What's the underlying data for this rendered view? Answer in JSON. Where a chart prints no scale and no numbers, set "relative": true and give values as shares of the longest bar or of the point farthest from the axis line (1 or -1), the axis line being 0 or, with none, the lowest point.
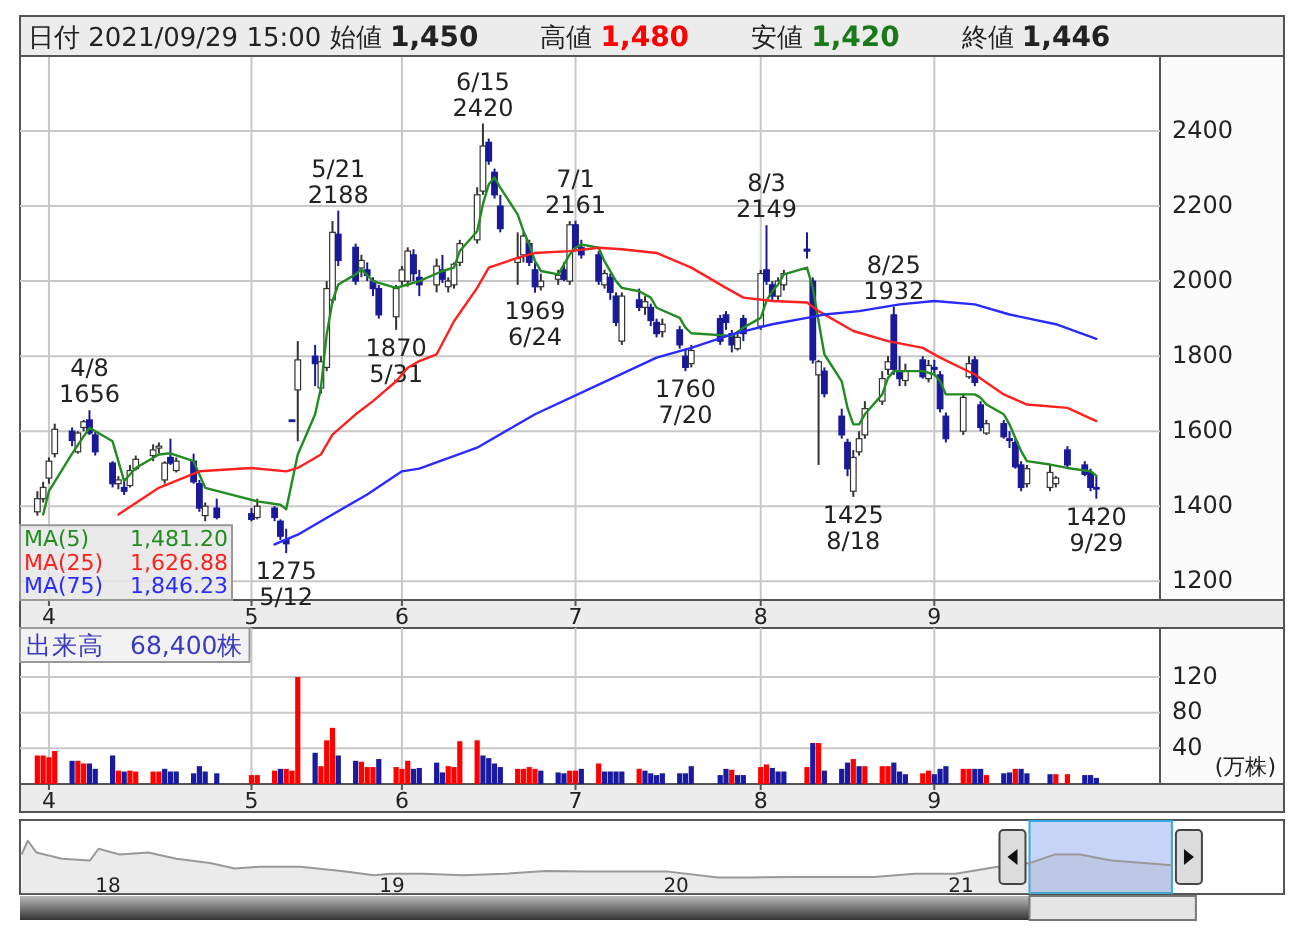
{
  "chart_data": [
    {
      "type": "candlestick",
      "title": "日付 2021/09/29 15:00 始値 1,450 高値 1,480 安値 1,420 終値 1,446",
      "colors": [
        "#ffffff",
        "#ffffff",
        "#ffffff",
        "#ffffff",
        "#1a1a99",
        "#ffffff",
        "#ffffff",
        "#1a1a99",
        "#1a1a99",
        "#1a1a99",
        "#ffffff",
        "#1a1a99",
        "#ffffff",
        "#ffffff",
        "#ffffff",
        "#ffffff",
        "#ffffff",
        "#1a1a99",
        "#ffffff",
        "#1a1a99",
        "#1a1a99",
        "#ffffff",
        "#1a1a99",
        "#1a1a99",
        "#ffffff",
        "#1a1a99",
        "#1a1a99",
        "#1a1a99",
        "#1a1a99",
        "#ffffff",
        "#1a1a99",
        "#ffffff",
        "#ffffff",
        "#ffffff",
        "#1a1a99",
        "#1a1a99",
        "#ffffff",
        "#1a1a99",
        "#1a1a99",
        "#1a1a99",
        "#ffffff",
        "#ffffff",
        "#ffffff",
        "#1a1a99",
        "#1a1a99",
        "#ffffff",
        "#1a1a99",
        "#ffffff",
        "#ffffff",
        "#ffffff",
        "#ffffff",
        "#ffffff",
        "#1a1a99",
        "#1a1a99",
        "#1a1a99",
        "#ffffff",
        "#ffffff",
        "#1a1a99",
        "#1a1a99",
        "#ffffff",
        "#ffffff",
        "#1a1a99",
        "#ffffff",
        "#1a1a99",
        "#1a1a99",
        "#1a1a99",
        "#ffffff",
        "#1a1a99",
        "#1a1a99",
        "#ffffff",
        "#1a1a99",
        "#ffffff",
        "#1a1a99",
        "#1a1a99",
        "#ffffff",
        "#1a1a99",
        "#1a1a99",
        "#ffffff",
        "#1a1a99",
        "#1a1a99",
        "#1a1a99",
        "#ffffff",
        "#1a1a99",
        "#ffffff",
        "#1a1a99",
        "#1a1a99",
        "#ffffff",
        "#ffffff",
        "#1a1a99",
        "#1a1a99",
        "#ffffff",
        "#1a1a99",
        "#1a1a99",
        "#1a1a99",
        "#ffffff",
        "#ffffff",
        "#ffffff",
        "#ffffff",
        "#ffffff",
        "#1a1a99",
        "#1a1a99",
        "#ffffff",
        "#1a1a99",
        "#ffffff",
        "#1a1a99",
        "#1a1a99",
        "#1a1a99",
        "#ffffff",
        "#ffffff",
        "#1a1a99",
        "#1a1a99",
        "#ffffff",
        "#1a1a99",
        "#1a1a99",
        "#1a1a99",
        "#1a1a99",
        "#ffffff",
        "#ffffff",
        "#ffffff",
        "#1a1a99",
        "#1a1a99",
        "#1a1a99",
        "#1a1a99"
      ],
      "x": [
        "2021-03-30",
        "2021-03-31",
        "2021-04-01",
        "2021-04-02",
        "2021-04-05",
        "2021-04-06",
        "2021-04-07",
        "2021-04-08",
        "2021-04-09",
        "2021-04-12",
        "2021-04-13",
        "2021-04-14",
        "2021-04-15",
        "2021-04-16",
        "2021-04-19",
        "2021-04-20",
        "2021-04-21",
        "2021-04-22",
        "2021-04-23",
        "2021-04-26",
        "2021-04-27",
        "2021-04-28",
        "2021-04-30",
        "2021-05-06",
        "2021-05-07",
        "2021-05-10",
        "2021-05-11",
        "2021-05-12",
        "2021-05-13",
        "2021-05-14",
        "2021-05-17",
        "2021-05-18",
        "2021-05-19",
        "2021-05-20",
        "2021-05-21",
        "2021-05-24",
        "2021-05-25",
        "2021-05-26",
        "2021-05-27",
        "2021-05-28",
        "2021-05-31",
        "2021-06-01",
        "2021-06-02",
        "2021-06-03",
        "2021-06-04",
        "2021-06-07",
        "2021-06-08",
        "2021-06-09",
        "2021-06-10",
        "2021-06-11",
        "2021-06-14",
        "2021-06-15",
        "2021-06-16",
        "2021-06-17",
        "2021-06-18",
        "2021-06-21",
        "2021-06-22",
        "2021-06-23",
        "2021-06-24",
        "2021-06-25",
        "2021-06-28",
        "2021-06-29",
        "2021-06-30",
        "2021-07-01",
        "2021-07-02",
        "2021-07-05",
        "2021-07-06",
        "2021-07-07",
        "2021-07-08",
        "2021-07-09",
        "2021-07-12",
        "2021-07-13",
        "2021-07-14",
        "2021-07-15",
        "2021-07-16",
        "2021-07-19",
        "2021-07-20",
        "2021-07-21",
        "2021-07-26",
        "2021-07-27",
        "2021-07-28",
        "2021-07-29",
        "2021-07-30",
        "2021-08-02",
        "2021-08-03",
        "2021-08-04",
        "2021-08-05",
        "2021-08-06",
        "2021-08-10",
        "2021-08-11",
        "2021-08-12",
        "2021-08-13",
        "2021-08-16",
        "2021-08-17",
        "2021-08-18",
        "2021-08-19",
        "2021-08-20",
        "2021-08-23",
        "2021-08-24",
        "2021-08-25",
        "2021-08-26",
        "2021-08-27",
        "2021-08-30",
        "2021-08-31",
        "2021-09-01",
        "2021-09-02",
        "2021-09-03",
        "2021-09-06",
        "2021-09-07",
        "2021-09-08",
        "2021-09-09",
        "2021-09-10",
        "2021-09-13",
        "2021-09-14",
        "2021-09-15",
        "2021-09-16",
        "2021-09-17",
        "2021-09-21",
        "2021-09-22",
        "2021-09-24",
        "2021-09-27",
        "2021-09-28",
        "2021-09-29"
      ],
      "ohlc": [
        [
          1385,
          1440,
          1375,
          1420
        ],
        [
          1420,
          1465,
          1410,
          1450
        ],
        [
          1475,
          1530,
          1460,
          1520
        ],
        [
          1540,
          1620,
          1530,
          1605
        ],
        [
          1600,
          1610,
          1560,
          1575
        ],
        [
          1545,
          1600,
          1540,
          1595
        ],
        [
          1610,
          1630,
          1600,
          1625
        ],
        [
          1630,
          1656,
          1590,
          1595
        ],
        [
          1590,
          1600,
          1535,
          1545
        ],
        [
          1515,
          1520,
          1450,
          1460
        ],
        [
          1460,
          1480,
          1445,
          1470
        ],
        [
          1450,
          1465,
          1430,
          1440
        ],
        [
          1455,
          1510,
          1450,
          1495
        ],
        [
          1500,
          1535,
          1495,
          1525
        ],
        [
          1535,
          1565,
          1520,
          1550
        ],
        [
          1555,
          1570,
          1540,
          1560
        ],
        [
          1470,
          1520,
          1460,
          1515
        ],
        [
          1530,
          1580,
          1510,
          1515
        ],
        [
          1495,
          1530,
          1490,
          1520
        ],
        [
          1520,
          1540,
          1460,
          1465
        ],
        [
          1460,
          1470,
          1385,
          1395
        ],
        [
          1375,
          1410,
          1360,
          1400
        ],
        [
          1395,
          1420,
          1365,
          1370
        ],
        [
          1380,
          1395,
          1360,
          1365
        ],
        [
          1370,
          1420,
          1365,
          1400
        ],
        [
          1395,
          1400,
          1360,
          1370
        ],
        [
          1360,
          1365,
          1310,
          1320
        ],
        [
          1310,
          1340,
          1275,
          1300
        ],
        [
          1630,
          1630,
          1630,
          1630
        ],
        [
          1710,
          1840,
          1573,
          1790
        ],
        [
          1800,
          1830,
          1720,
          1780
        ],
        [
          1715,
          1800,
          1700,
          1785
        ],
        [
          1770,
          2000,
          1760,
          1980
        ],
        [
          1950,
          2160,
          1940,
          2130
        ],
        [
          2125,
          2188,
          2040,
          2055
        ],
        [
          2090,
          2100,
          1990,
          2000
        ],
        [
          2035,
          2070,
          2010,
          2055
        ],
        [
          2030,
          2050,
          2000,
          2015
        ],
        [
          2000,
          2010,
          1960,
          1980
        ],
        [
          1980,
          1990,
          1900,
          1910
        ],
        [
          1905,
          1990,
          1870,
          1980
        ],
        [
          2000,
          2040,
          1990,
          2030
        ],
        [
          2000,
          2090,
          1985,
          2080
        ],
        [
          2070,
          2085,
          2000,
          2020
        ],
        [
          2010,
          2030,
          1960,
          1990
        ],
        [
          1990,
          2060,
          1970,
          2040
        ],
        [
          2030,
          2070,
          1995,
          2005
        ],
        [
          1985,
          2010,
          1970,
          2000
        ],
        [
          1990,
          2050,
          1980,
          2045
        ],
        [
          2050,
          2110,
          2040,
          2100
        ],
        [
          2110,
          2250,
          2100,
          2230
        ],
        [
          2240,
          2420,
          2230,
          2360
        ],
        [
          2370,
          2380,
          2310,
          2320
        ],
        [
          2290,
          2300,
          2220,
          2230
        ],
        [
          2200,
          2230,
          2130,
          2140
        ],
        [
          2050,
          2130,
          1990,
          2060
        ],
        [
          2070,
          2130,
          2050,
          2120
        ],
        [
          2100,
          2110,
          2040,
          2050
        ],
        [
          2030,
          2050,
          1969,
          1985
        ],
        [
          1985,
          2020,
          1975,
          2000
        ],
        [
          2005,
          2030,
          1990,
          2015
        ],
        [
          2030,
          2050,
          2000,
          2005
        ],
        [
          2000,
          2160,
          1990,
          2150
        ],
        [
          2150,
          2161,
          2080,
          2090
        ],
        [
          2090,
          2110,
          2060,
          2070
        ],
        [
          2070,
          2080,
          1990,
          2000
        ],
        [
          1990,
          2030,
          1980,
          2020
        ],
        [
          2010,
          2020,
          1950,
          1970
        ],
        [
          1960,
          1970,
          1880,
          1890
        ],
        [
          1840,
          1970,
          1830,
          1960
        ],
        [
          1950,
          1980,
          1920,
          1930
        ],
        [
          1930,
          1960,
          1910,
          1945
        ],
        [
          1930,
          1940,
          1880,
          1895
        ],
        [
          1890,
          1900,
          1850,
          1860
        ],
        [
          1865,
          1900,
          1850,
          1885
        ],
        [
          1870,
          1880,
          1820,
          1830
        ],
        [
          1800,
          1820,
          1760,
          1770
        ],
        [
          1780,
          1830,
          1770,
          1815
        ],
        [
          1900,
          1910,
          1830,
          1840
        ],
        [
          1910,
          1920,
          1870,
          1890
        ],
        [
          1860,
          1870,
          1810,
          1830
        ],
        [
          1820,
          1860,
          1815,
          1850
        ],
        [
          1900,
          1910,
          1840,
          1860
        ],
        [
          1880,
          2030,
          1870,
          2020
        ],
        [
          2030,
          2149,
          1990,
          2000
        ],
        [
          1990,
          2000,
          1950,
          1960
        ],
        [
          1960,
          2010,
          1950,
          2000
        ],
        [
          1990,
          2030,
          1975,
          2020
        ],
        [
          2085,
          2130,
          2060,
          2080
        ],
        [
          2000,
          2010,
          1780,
          1790
        ],
        [
          1750,
          1790,
          1510,
          1785
        ],
        [
          1760,
          1770,
          1690,
          1700
        ],
        [
          1640,
          1660,
          1580,
          1590
        ],
        [
          1570,
          1580,
          1480,
          1500
        ],
        [
          1440,
          1550,
          1425,
          1530
        ],
        [
          1545,
          1600,
          1535,
          1580
        ],
        [
          1590,
          1680,
          1580,
          1660
        ],
        [
          1680,
          1760,
          1670,
          1740
        ],
        [
          1765,
          1800,
          1750,
          1785
        ],
        [
          1910,
          1932,
          1750,
          1765
        ],
        [
          1760,
          1800,
          1720,
          1740
        ],
        [
          1735,
          1780,
          1720,
          1760
        ],
        [
          1790,
          1800,
          1740,
          1745
        ],
        [
          1740,
          1790,
          1730,
          1775
        ],
        [
          1770,
          1790,
          1750,
          1765
        ],
        [
          1750,
          1760,
          1650,
          1660
        ],
        [
          1640,
          1650,
          1570,
          1580
        ],
        [
          1600,
          1700,
          1590,
          1690
        ],
        [
          1745,
          1800,
          1740,
          1780
        ],
        [
          1790,
          1800,
          1720,
          1730
        ],
        [
          1670,
          1680,
          1600,
          1610
        ],
        [
          1595,
          1630,
          1590,
          1620
        ],
        [
          1620,
          1630,
          1580,
          1585
        ],
        [
          1580,
          1600,
          1555,
          1575
        ],
        [
          1570,
          1580,
          1500,
          1505
        ],
        [
          1510,
          1520,
          1440,
          1450
        ],
        [
          1460,
          1510,
          1450,
          1500
        ],
        [
          1450,
          1510,
          1440,
          1490
        ],
        [
          1460,
          1480,
          1450,
          1475
        ],
        [
          1550,
          1560,
          1500,
          1510
        ],
        [
          1510,
          1520,
          1480,
          1485
        ],
        [
          1490,
          1500,
          1440,
          1450
        ],
        [
          1450,
          1480,
          1420,
          1446
        ]
      ],
      "series": [
        {
          "name": "MA(5)",
          "type": "line",
          "color": "#228b22",
          "x": [
            "2021-03-31",
            "2021-04-01",
            "2021-04-05",
            "2021-04-08",
            "2021-04-12",
            "2021-04-14",
            "2021-04-16",
            "2021-04-20",
            "2021-04-22",
            "2021-04-26",
            "2021-04-28",
            "2021-05-07",
            "2021-05-11",
            "2021-05-12",
            "2021-05-14",
            "2021-05-17",
            "2021-05-18",
            "2021-05-19",
            "2021-05-20",
            "2021-05-21",
            "2021-05-24",
            "2021-05-25",
            "2021-05-27",
            "2021-05-31",
            "2021-06-02",
            "2021-06-04",
            "2021-06-08",
            "2021-06-10",
            "2021-06-11",
            "2021-06-14",
            "2021-06-15",
            "2021-06-16",
            "2021-06-17",
            "2021-06-18",
            "2021-06-21",
            "2021-06-22",
            "2021-06-23",
            "2021-06-24",
            "2021-06-25",
            "2021-06-28",
            "2021-06-30",
            "2021-07-01",
            "2021-07-02",
            "2021-07-05",
            "2021-07-06",
            "2021-07-08",
            "2021-07-09",
            "2021-07-12",
            "2021-07-14",
            "2021-07-15",
            "2021-07-19",
            "2021-07-20",
            "2021-07-21",
            "2021-07-28",
            "2021-07-30",
            "2021-08-02",
            "2021-08-03",
            "2021-08-04",
            "2021-08-05",
            "2021-08-06",
            "2021-08-10",
            "2021-08-11",
            "2021-08-12",
            "2021-08-13",
            "2021-08-16",
            "2021-08-17",
            "2021-08-18",
            "2021-08-19",
            "2021-08-20",
            "2021-08-23",
            "2021-08-24",
            "2021-08-25",
            "2021-08-30",
            "2021-09-01",
            "2021-09-02",
            "2021-09-03",
            "2021-09-08",
            "2021-09-09",
            "2021-09-10",
            "2021-09-13",
            "2021-09-14",
            "2021-09-15",
            "2021-09-16",
            "2021-09-17",
            "2021-09-21",
            "2021-09-24",
            "2021-09-28",
            "2021-09-29"
          ],
          "values": [
            1378,
            1440,
            1540,
            1609,
            1573,
            1467,
            1502,
            1538,
            1541,
            1520,
            1449,
            1413,
            1404,
            1392,
            1538,
            1645,
            1716,
            1858,
            1947,
            1991,
            2018,
            2032,
            2000,
            1982,
            1991,
            2000,
            2027,
            2036,
            2080,
            2133,
            2205,
            2258,
            2276,
            2249,
            2178,
            2133,
            2098,
            2053,
            2027,
            2018,
            2071,
            2089,
            2098,
            2089,
            2053,
            2000,
            1982,
            1973,
            1956,
            1929,
            1902,
            1876,
            1861,
            1854,
            1876,
            1902,
            1947,
            1973,
            1991,
            2018,
            2036,
            1982,
            1893,
            1805,
            1733,
            1662,
            1618,
            1618,
            1645,
            1698,
            1742,
            1760,
            1760,
            1751,
            1733,
            1698,
            1698,
            1689,
            1671,
            1645,
            1618,
            1582,
            1547,
            1520,
            1511,
            1502,
            1493,
            1481.2
          ]
        },
        {
          "name": "MA(25)",
          "type": "line",
          "color": "#ff2020",
          "x": [
            "2021-04-13",
            "2021-04-20",
            "2021-04-27",
            "2021-05-06",
            "2021-05-12",
            "2021-05-14",
            "2021-05-18",
            "2021-05-20",
            "2021-05-24",
            "2021-05-27",
            "2021-05-31",
            "2021-06-02",
            "2021-06-04",
            "2021-06-07",
            "2021-06-10",
            "2021-06-14",
            "2021-06-16",
            "2021-06-21",
            "2021-06-24",
            "2021-06-30",
            "2021-07-05",
            "2021-07-09",
            "2021-07-15",
            "2021-07-21",
            "2021-07-27",
            "2021-07-30",
            "2021-08-04",
            "2021-08-10",
            "2021-08-12",
            "2021-08-18",
            "2021-08-24",
            "2021-08-30",
            "2021-09-02",
            "2021-09-08",
            "2021-09-13",
            "2021-09-17",
            "2021-09-24",
            "2021-09-29"
          ],
          "values": [
            1378,
            1449,
            1493,
            1502,
            1493,
            1502,
            1538,
            1591,
            1645,
            1680,
            1733,
            1769,
            1787,
            1805,
            1893,
            1982,
            2036,
            2062,
            2075,
            2080,
            2089,
            2085,
            2075,
            2036,
            1982,
            1956,
            1947,
            1943,
            1920,
            1867,
            1840,
            1822,
            1796,
            1751,
            1698,
            1671,
            1662,
            1626.88
          ]
        },
        {
          "name": "MA(75)",
          "type": "line",
          "color": "#2a2aff",
          "x": [
            "2021-05-10",
            "2021-05-14",
            "2021-05-20",
            "2021-05-26",
            "2021-06-01",
            "2021-06-04",
            "2021-06-14",
            "2021-06-24",
            "2021-07-05",
            "2021-07-15",
            "2021-07-21",
            "2021-07-28",
            "2021-08-04",
            "2021-08-10",
            "2021-08-13",
            "2021-08-19",
            "2021-08-26",
            "2021-09-01",
            "2021-09-08",
            "2021-09-14",
            "2021-09-22",
            "2021-09-29"
          ],
          "values": [
            1298,
            1324,
            1378,
            1431,
            1493,
            1500,
            1556,
            1645,
            1724,
            1796,
            1822,
            1858,
            1885,
            1902,
            1911,
            1920,
            1938,
            1947,
            1938,
            1911,
            1885,
            1846.23
          ]
        }
      ],
      "annotations": [
        "1,481.20",
        "1,626.88",
        "1,846.23",
        {
          "text": "4/8\n1656",
          "x": "2021-04-08",
          "y": 1656
        },
        {
          "text": "1275\n5/12",
          "x": "2021-05-12",
          "y": 1275
        },
        {
          "text": "5/21\n2188",
          "x": "2021-05-21",
          "y": 2188
        },
        {
          "text": "1870\n5/31",
          "x": "2021-05-31",
          "y": 1870
        },
        {
          "text": "6/15\n2420",
          "x": "2021-06-15",
          "y": 2420
        },
        {
          "text": "1969\n6/24",
          "x": "2021-06-24",
          "y": 1969
        },
        {
          "text": "7/1\n2161",
          "x": "2021-07-01",
          "y": 2161
        },
        {
          "text": "1760\n7/20",
          "x": "2021-07-20",
          "y": 1760
        },
        {
          "text": "8/3\n2149",
          "x": "2021-08-03",
          "y": 2149
        },
        {
          "text": "1425\n8/18",
          "x": "2021-08-18",
          "y": 1425
        },
        {
          "text": "8/25\n1932",
          "x": "2021-08-25",
          "y": 1932
        },
        {
          "text": "1420\n9/29",
          "x": "2021-09-29",
          "y": 1420
        }
      ],
      "legend": "bottom left",
      "grid": true,
      "xlim": [
        "2021-03-27",
        "2021-10-10"
      ],
      "ylim": [
        1150,
        2600
      ],
      "yticks": [
        1200,
        1400,
        1600,
        1800,
        2000,
        2200,
        2400
      ],
      "xticks": [
        {
          "value": "2021-04-01",
          "label": "4"
        },
        {
          "value": "2021-05-06",
          "label": "5"
        },
        {
          "value": "2021-06-01",
          "label": "6"
        },
        {
          "value": "2021-07-01",
          "label": "7"
        },
        {
          "value": "2021-08-02",
          "label": "8"
        },
        {
          "value": "2021-09-01",
          "label": "9"
        }
      ]
    },
    {
      "type": "bar",
      "title": "出来高　68,400株",
      "ylabel": "(万株)",
      "x": [
        "2021-03-30",
        "2021-03-31",
        "2021-04-01",
        "2021-04-02",
        "2021-04-05",
        "2021-04-06",
        "2021-04-07",
        "2021-04-08",
        "2021-04-09",
        "2021-04-12",
        "2021-04-13",
        "2021-04-14",
        "2021-04-15",
        "2021-04-16",
        "2021-04-19",
        "2021-04-20",
        "2021-04-21",
        "2021-04-22",
        "2021-04-23",
        "2021-04-26",
        "2021-04-27",
        "2021-04-28",
        "2021-04-30",
        "2021-05-06",
        "2021-05-07",
        "2021-05-10",
        "2021-05-11",
        "2021-05-12",
        "2021-05-13",
        "2021-05-14",
        "2021-05-17",
        "2021-05-18",
        "2021-05-19",
        "2021-05-20",
        "2021-05-21",
        "2021-05-24",
        "2021-05-25",
        "2021-05-26",
        "2021-05-27",
        "2021-05-28",
        "2021-05-31",
        "2021-06-01",
        "2021-06-02",
        "2021-06-03",
        "2021-06-04",
        "2021-06-07",
        "2021-06-08",
        "2021-06-09",
        "2021-06-10",
        "2021-06-11",
        "2021-06-14",
        "2021-06-15",
        "2021-06-16",
        "2021-06-17",
        "2021-06-18",
        "2021-06-21",
        "2021-06-22",
        "2021-06-23",
        "2021-06-24",
        "2021-06-25",
        "2021-06-28",
        "2021-06-29",
        "2021-06-30",
        "2021-07-01",
        "2021-07-02",
        "2021-07-05",
        "2021-07-06",
        "2021-07-07",
        "2021-07-08",
        "2021-07-09",
        "2021-07-12",
        "2021-07-13",
        "2021-07-14",
        "2021-07-15",
        "2021-07-16",
        "2021-07-19",
        "2021-07-20",
        "2021-07-21",
        "2021-07-26",
        "2021-07-27",
        "2021-07-28",
        "2021-07-29",
        "2021-07-30",
        "2021-08-02",
        "2021-08-03",
        "2021-08-04",
        "2021-08-05",
        "2021-08-06",
        "2021-08-10",
        "2021-08-11",
        "2021-08-12",
        "2021-08-13",
        "2021-08-16",
        "2021-08-17",
        "2021-08-18",
        "2021-08-19",
        "2021-08-20",
        "2021-08-23",
        "2021-08-24",
        "2021-08-25",
        "2021-08-26",
        "2021-08-27",
        "2021-08-30",
        "2021-08-31",
        "2021-09-01",
        "2021-09-02",
        "2021-09-03",
        "2021-09-06",
        "2021-09-07",
        "2021-09-08",
        "2021-09-09",
        "2021-09-10",
        "2021-09-13",
        "2021-09-14",
        "2021-09-15",
        "2021-09-16",
        "2021-09-17",
        "2021-09-21",
        "2021-09-22",
        "2021-09-24",
        "2021-09-27",
        "2021-09-28",
        "2021-09-29"
      ],
      "values": [
        32,
        32,
        30,
        37,
        26,
        26,
        23,
        23,
        17,
        32,
        15,
        14,
        15,
        14,
        14,
        14,
        17,
        14,
        14,
        12,
        20,
        14,
        12,
        10,
        10,
        15,
        17,
        17,
        15,
        120,
        35,
        20,
        49,
        63,
        32,
        26,
        25,
        19,
        19,
        28,
        19,
        17,
        26,
        17,
        18,
        24,
        13,
        20,
        19,
        48,
        49,
        32,
        29,
        23,
        19,
        17,
        17,
        19,
        17,
        15,
        13,
        12,
        15,
        15,
        17,
        23,
        14,
        14,
        14,
        14,
        17,
        15,
        12,
        10,
        12,
        12,
        12,
        20,
        10,
        17,
        16,
        10,
        10,
        19,
        22,
        18,
        14,
        14,
        19,
        46,
        46,
        15,
        17,
        24,
        28,
        20,
        20,
        20,
        20,
        24,
        14,
        11,
        12,
        15,
        11,
        17,
        20,
        17,
        17,
        17,
        17,
        10,
        12,
        13,
        17,
        17,
        12,
        11,
        11,
        11,
        10,
        10,
        6.84
      ],
      "colors": [
        "#ff0000",
        "#ff0000",
        "#ff0000",
        "#ff0000",
        "#1a1aa0",
        "#ff0000",
        "#ff0000",
        "#1a1aa0",
        "#1a1aa0",
        "#1a1aa0",
        "#ff0000",
        "#1a1aa0",
        "#ff0000",
        "#ff0000",
        "#ff0000",
        "#ff0000",
        "#1a1aa0",
        "#1a1aa0",
        "#1a1aa0",
        "#1a1aa0",
        "#1a1aa0",
        "#1a1aa0",
        "#1a1aa0",
        "#ff0000",
        "#ff0000",
        "#ff0000",
        "#1a1aa0",
        "#ff0000",
        "#ff0000",
        "#ff0000",
        "#1a1aa0",
        "#ff0000",
        "#ff0000",
        "#ff0000",
        "#1a1aa0",
        "#1a1aa0",
        "#ff0000",
        "#ff0000",
        "#ff0000",
        "#1a1aa0",
        "#ff0000",
        "#ff0000",
        "#ff0000",
        "#1a1aa0",
        "#1a1aa0",
        "#1a1aa0",
        "#1a1aa0",
        "#ff0000",
        "#ff0000",
        "#ff0000",
        "#ff0000",
        "#1a1aa0",
        "#1a1aa0",
        "#1a1aa0",
        "#1a1aa0",
        "#ff0000",
        "#ff0000",
        "#ff0000",
        "#ff0000",
        "#1a1aa0",
        "#1a1aa0",
        "#1a1aa0",
        "#ff0000",
        "#ff0000",
        "#1a1aa0",
        "#ff0000",
        "#1a1aa0",
        "#1a1aa0",
        "#1a1aa0",
        "#1a1aa0",
        "#ff0000",
        "#1a1aa0",
        "#1a1aa0",
        "#1a1aa0",
        "#1a1aa0",
        "#1a1aa0",
        "#1a1aa0",
        "#1a1aa0",
        "#1a1aa0",
        "#1a1aa0",
        "#ff0000",
        "#1a1aa0",
        "#1a1aa0",
        "#ff0000",
        "#ff0000",
        "#1a1aa0",
        "#1a1aa0",
        "#1a1aa0",
        "#ff0000",
        "#1a1aa0",
        "#ff0000",
        "#1a1aa0",
        "#1a1aa0",
        "#1a1aa0",
        "#ff0000",
        "#1a1aa0",
        "#ff0000",
        "#ff0000",
        "#ff0000",
        "#1a1aa0",
        "#1a1aa0",
        "#1a1aa0",
        "#ff0000",
        "#ff0000",
        "#1a1aa0",
        "#1a1aa0",
        "#1a1aa0",
        "#ff0000",
        "#ff0000",
        "#1a1aa0",
        "#1a1aa0",
        "#ff0000",
        "#1a1aa0",
        "#1a1aa0",
        "#ff0000",
        "#1a1aa0",
        "#1a1aa0",
        "#1a1aa0",
        "#ff0000",
        "#ff0000",
        "#1a1aa0",
        "#1a1aa0",
        "#1a1aa0"
      ],
      "grid": true,
      "xlim": [
        "2021-03-27",
        "2021-10-10"
      ],
      "ylim": [
        0,
        175
      ],
      "yticks": [
        40,
        80,
        120
      ],
      "xticks": [
        {
          "value": "2021-04-01",
          "label": "4"
        },
        {
          "value": "2021-05-06",
          "label": "5"
        },
        {
          "value": "2021-06-01",
          "label": "6"
        },
        {
          "value": "2021-07-01",
          "label": "7"
        },
        {
          "value": "2021-08-02",
          "label": "8"
        },
        {
          "value": "2021-09-01",
          "label": "9"
        }
      ]
    },
    {
      "type": "area",
      "relative": true,
      "color": "#999999",
      "x": [
        "2017-09-12",
        "2017-09-20",
        "2017-10-01",
        "2017-11-03",
        "2017-12-09",
        "2017-12-20",
        "2018-01-16",
        "2018-02-22",
        "2018-03-30",
        "2018-05-12",
        "2018-06-13",
        "2018-07-14",
        "2018-09-05",
        "2018-10-28",
        "2018-12-09",
        "2018-12-30",
        "2019-02-10",
        "2019-04-02",
        "2019-05-26",
        "2019-07-17",
        "2019-09-08",
        "2019-10-31",
        "2019-12-22",
        "2020-02-24",
        "2020-04-06",
        "2020-05-29",
        "2020-07-20",
        "2020-09-11",
        "2020-11-03",
        "2020-12-25",
        "2021-02-17",
        "2021-03-30",
        "2021-05-01",
        "2021-06-03",
        "2021-07-13",
        "2021-08-24",
        "2021-09-29"
      ],
      "values": [
        0.74,
        1,
        0.78,
        0.66,
        0.63,
        0.85,
        0.74,
        0.78,
        0.66,
        0.58,
        0.48,
        0.51,
        0.51,
        0.43,
        0.35,
        0.38,
        0.38,
        0.35,
        0.38,
        0.43,
        0.42,
        0.42,
        0.42,
        0.31,
        0.31,
        0.32,
        0.32,
        0.32,
        0.38,
        0.38,
        0.51,
        0.58,
        0.74,
        0.74,
        0.63,
        0.58,
        0.54
      ],
      "xlim": [
        "2017-09-10",
        "2022-02-20"
      ],
      "xticks": [
        {
          "value": "2018-01-01",
          "label": "18"
        },
        {
          "value": "2019-01-01",
          "label": "19"
        },
        {
          "value": "2020-01-01",
          "label": "20"
        },
        {
          "value": "2021-01-01",
          "label": "21"
        }
      ],
      "bands": [
        {
          "axis": "x",
          "from": "2021-03-30",
          "to": "2021-09-29",
          "color": "#b4c4f4"
        }
      ]
    }
  ]
}
